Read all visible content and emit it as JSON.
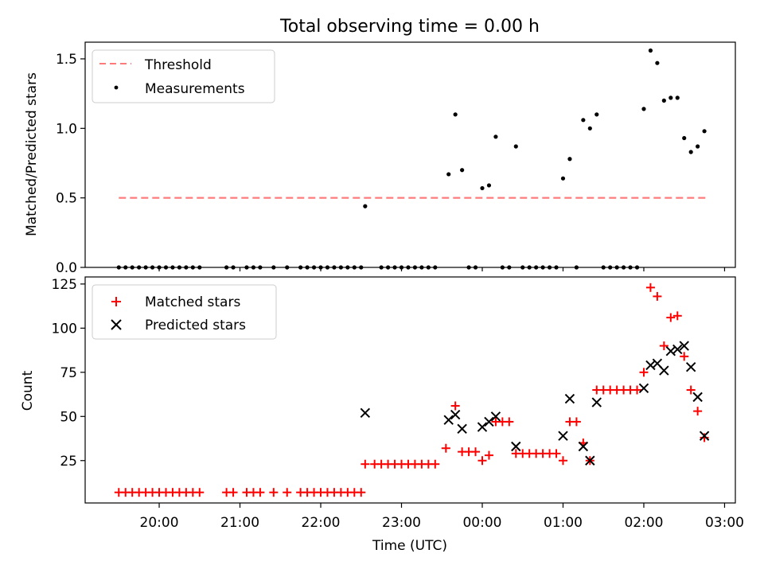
{
  "title": "Total observing time = 0.00 h",
  "colors": {
    "threshold": "#ff7b7b",
    "measurement": "#000000",
    "matched": "#ff0000",
    "predicted": "#000000",
    "axes": "#000000",
    "legend_border": "#cccccc"
  },
  "chart_data": [
    {
      "type": "scatter",
      "panel": "top",
      "xlabel": "",
      "ylabel": "Matched/Predicted stars",
      "ylim": [
        0,
        1.62
      ],
      "yticks": [
        0.0,
        0.5,
        1.0,
        1.5
      ],
      "ytick_labels": [
        "0.0",
        "0.5",
        "1.0",
        "1.5"
      ],
      "legend": {
        "placement": "upper-left",
        "entries": [
          "Threshold",
          "Measurements"
        ]
      },
      "threshold": {
        "name": "Threshold",
        "value": 0.5,
        "x_start": "19:30",
        "x_end": "02:48"
      },
      "series": [
        {
          "name": "Measurements",
          "points": [
            [
              "19:30",
              0
            ],
            [
              "19:35",
              0
            ],
            [
              "19:40",
              0
            ],
            [
              "19:45",
              0
            ],
            [
              "19:50",
              0
            ],
            [
              "19:55",
              0
            ],
            [
              "20:00",
              0
            ],
            [
              "20:05",
              0
            ],
            [
              "20:10",
              0
            ],
            [
              "20:15",
              0
            ],
            [
              "20:20",
              0
            ],
            [
              "20:25",
              0
            ],
            [
              "20:30",
              0
            ],
            [
              "20:50",
              0
            ],
            [
              "20:55",
              0
            ],
            [
              "21:05",
              0
            ],
            [
              "21:10",
              0
            ],
            [
              "21:15",
              0
            ],
            [
              "21:25",
              0
            ],
            [
              "21:35",
              0
            ],
            [
              "21:45",
              0
            ],
            [
              "21:50",
              0
            ],
            [
              "21:55",
              0
            ],
            [
              "22:00",
              0
            ],
            [
              "22:05",
              0
            ],
            [
              "22:10",
              0
            ],
            [
              "22:15",
              0
            ],
            [
              "22:20",
              0
            ],
            [
              "22:25",
              0
            ],
            [
              "22:30",
              0
            ],
            [
              "22:33",
              0.44
            ],
            [
              "22:45",
              0
            ],
            [
              "22:50",
              0
            ],
            [
              "22:55",
              0
            ],
            [
              "23:00",
              0
            ],
            [
              "23:05",
              0
            ],
            [
              "23:10",
              0
            ],
            [
              "23:15",
              0
            ],
            [
              "23:20",
              0
            ],
            [
              "23:25",
              0
            ],
            [
              "23:35",
              0.67
            ],
            [
              "23:40",
              1.1
            ],
            [
              "23:45",
              0.7
            ],
            [
              "23:50",
              0
            ],
            [
              "23:55",
              0
            ],
            [
              "00:00",
              0.57
            ],
            [
              "00:05",
              0.59
            ],
            [
              "00:10",
              0.94
            ],
            [
              "00:15",
              0
            ],
            [
              "00:20",
              0
            ],
            [
              "00:25",
              0.87
            ],
            [
              "00:30",
              0
            ],
            [
              "00:35",
              0
            ],
            [
              "00:40",
              0
            ],
            [
              "00:45",
              0
            ],
            [
              "00:50",
              0
            ],
            [
              "00:55",
              0
            ],
            [
              "01:00",
              0.64
            ],
            [
              "01:05",
              0.78
            ],
            [
              "01:10",
              0
            ],
            [
              "01:15",
              1.06
            ],
            [
              "01:20",
              1.0
            ],
            [
              "01:25",
              1.1
            ],
            [
              "01:30",
              0
            ],
            [
              "01:35",
              0
            ],
            [
              "01:40",
              0
            ],
            [
              "01:45",
              0
            ],
            [
              "01:50",
              0
            ],
            [
              "01:55",
              0
            ],
            [
              "02:00",
              1.14
            ],
            [
              "02:05",
              1.56
            ],
            [
              "02:10",
              1.47
            ],
            [
              "02:15",
              1.2
            ],
            [
              "02:20",
              1.22
            ],
            [
              "02:25",
              1.22
            ],
            [
              "02:30",
              0.93
            ],
            [
              "02:35",
              0.83
            ],
            [
              "02:40",
              0.87
            ],
            [
              "02:45",
              0.98
            ]
          ]
        }
      ]
    },
    {
      "type": "scatter",
      "panel": "bottom",
      "xlabel": "Time (UTC)",
      "ylabel": "Count",
      "ylim": [
        1,
        129
      ],
      "yticks": [
        25,
        50,
        75,
        100,
        125
      ],
      "ytick_labels": [
        "25",
        "50",
        "75",
        "100",
        "125"
      ],
      "xlim": [
        "19:05",
        "03:08"
      ],
      "xticks": [
        "20:00",
        "21:00",
        "22:00",
        "23:00",
        "00:00",
        "01:00",
        "02:00",
        "03:00"
      ],
      "legend": {
        "placement": "upper-left",
        "entries": [
          "Matched stars",
          "Predicted stars"
        ]
      },
      "series": [
        {
          "name": "Matched stars",
          "marker": "plus",
          "points": [
            [
              "19:30",
              7
            ],
            [
              "19:35",
              7
            ],
            [
              "19:40",
              7
            ],
            [
              "19:45",
              7
            ],
            [
              "19:50",
              7
            ],
            [
              "19:55",
              7
            ],
            [
              "20:00",
              7
            ],
            [
              "20:05",
              7
            ],
            [
              "20:10",
              7
            ],
            [
              "20:15",
              7
            ],
            [
              "20:20",
              7
            ],
            [
              "20:25",
              7
            ],
            [
              "20:30",
              7
            ],
            [
              "20:50",
              7
            ],
            [
              "20:55",
              7
            ],
            [
              "21:05",
              7
            ],
            [
              "21:10",
              7
            ],
            [
              "21:15",
              7
            ],
            [
              "21:25",
              7
            ],
            [
              "21:35",
              7
            ],
            [
              "21:45",
              7
            ],
            [
              "21:50",
              7
            ],
            [
              "21:55",
              7
            ],
            [
              "22:00",
              7
            ],
            [
              "22:05",
              7
            ],
            [
              "22:10",
              7
            ],
            [
              "22:15",
              7
            ],
            [
              "22:20",
              7
            ],
            [
              "22:25",
              7
            ],
            [
              "22:30",
              7
            ],
            [
              "22:33",
              23
            ],
            [
              "22:40",
              23
            ],
            [
              "22:45",
              23
            ],
            [
              "22:50",
              23
            ],
            [
              "22:55",
              23
            ],
            [
              "23:00",
              23
            ],
            [
              "23:05",
              23
            ],
            [
              "23:10",
              23
            ],
            [
              "23:15",
              23
            ],
            [
              "23:20",
              23
            ],
            [
              "23:25",
              23
            ],
            [
              "23:33",
              32
            ],
            [
              "23:40",
              56
            ],
            [
              "23:45",
              30
            ],
            [
              "23:50",
              30
            ],
            [
              "23:55",
              30
            ],
            [
              "00:00",
              25
            ],
            [
              "00:05",
              28
            ],
            [
              "00:10",
              47
            ],
            [
              "00:15",
              47
            ],
            [
              "00:20",
              47
            ],
            [
              "00:25",
              29
            ],
            [
              "00:30",
              29
            ],
            [
              "00:35",
              29
            ],
            [
              "00:40",
              29
            ],
            [
              "00:45",
              29
            ],
            [
              "00:50",
              29
            ],
            [
              "00:55",
              29
            ],
            [
              "01:00",
              25
            ],
            [
              "01:05",
              47
            ],
            [
              "01:10",
              47
            ],
            [
              "01:15",
              35
            ],
            [
              "01:20",
              25
            ],
            [
              "01:25",
              65
            ],
            [
              "01:30",
              65
            ],
            [
              "01:35",
              65
            ],
            [
              "01:40",
              65
            ],
            [
              "01:45",
              65
            ],
            [
              "01:50",
              65
            ],
            [
              "01:55",
              65
            ],
            [
              "02:00",
              75
            ],
            [
              "02:05",
              123
            ],
            [
              "02:10",
              118
            ],
            [
              "02:15",
              90
            ],
            [
              "02:20",
              106
            ],
            [
              "02:25",
              107
            ],
            [
              "02:30",
              84
            ],
            [
              "02:35",
              65
            ],
            [
              "02:40",
              53
            ],
            [
              "02:45",
              38
            ]
          ]
        },
        {
          "name": "Predicted stars",
          "marker": "x",
          "points": [
            [
              "22:33",
              52
            ],
            [
              "23:35",
              48
            ],
            [
              "23:40",
              51
            ],
            [
              "23:45",
              43
            ],
            [
              "00:00",
              44
            ],
            [
              "00:05",
              47
            ],
            [
              "00:10",
              50
            ],
            [
              "00:25",
              33
            ],
            [
              "01:00",
              39
            ],
            [
              "01:05",
              60
            ],
            [
              "01:15",
              33
            ],
            [
              "01:20",
              25
            ],
            [
              "01:25",
              58
            ],
            [
              "02:00",
              66
            ],
            [
              "02:05",
              79
            ],
            [
              "02:10",
              80
            ],
            [
              "02:15",
              76
            ],
            [
              "02:20",
              87
            ],
            [
              "02:25",
              88
            ],
            [
              "02:30",
              90
            ],
            [
              "02:35",
              78
            ],
            [
              "02:40",
              61
            ],
            [
              "02:45",
              39
            ]
          ]
        }
      ]
    }
  ]
}
